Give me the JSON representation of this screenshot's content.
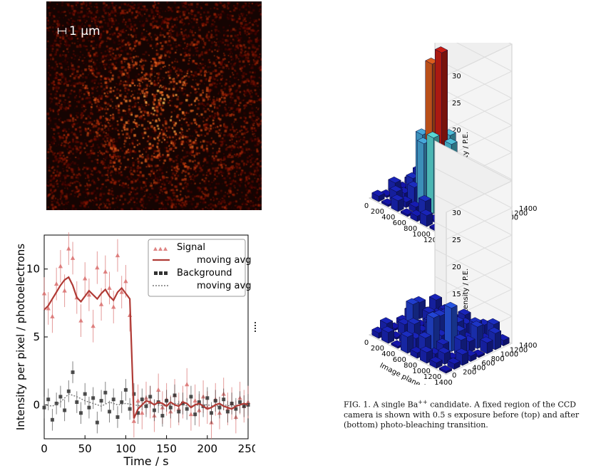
{
  "figure": {
    "scalebar_label": "1 μm",
    "caption": {
      "prefix": "FIG. 1.",
      "text_a": "A single Ba",
      "superscript": "++",
      "text_b": "candidate. A fixed region of the CCD camera is shown with 0.5 s exposure before (top) and after (bottom) photo-bleaching transition."
    }
  },
  "chart_data": [
    {
      "type": "scatter",
      "xlabel": "Time / s",
      "ylabel": "Intensity per pixel / photoelectrons",
      "xlim": [
        0,
        250
      ],
      "ylim": [
        -2.5,
        12.5
      ],
      "xticks": [
        0,
        50,
        100,
        150,
        200,
        250
      ],
      "yticks": [
        0,
        5,
        10
      ],
      "legend": {
        "placement": "top-right",
        "entries": [
          "Signal",
          "moving avg",
          "Background",
          "moving avg"
        ]
      },
      "colors": {
        "signal": "#d9706e",
        "signal_avg": "#b03a35",
        "background": "#333333",
        "background_avg": "#777777"
      },
      "series": [
        {
          "name": "Signal",
          "x": [
            0,
            5,
            10,
            15,
            20,
            25,
            30,
            35,
            40,
            45,
            50,
            55,
            60,
            65,
            70,
            75,
            80,
            85,
            90,
            95,
            100,
            105,
            110,
            115,
            120,
            125,
            130,
            135,
            140,
            145,
            150,
            155,
            160,
            165,
            170,
            175,
            180,
            185,
            190,
            195,
            200,
            205,
            210,
            215,
            220,
            225,
            230,
            235,
            240,
            245,
            250
          ],
          "y": [
            8.2,
            7.1,
            6.5,
            8.9,
            10.2,
            8.4,
            11.5,
            10.8,
            7.9,
            6.2,
            9.3,
            8.1,
            5.8,
            10.1,
            7.4,
            9.8,
            8.6,
            7.2,
            11.0,
            8.3,
            9.1,
            6.6,
            -1.2,
            0.3,
            -0.6,
            0.5,
            0.2,
            -0.8,
            1.1,
            -0.2,
            0.4,
            -0.5,
            0.7,
            -0.3,
            0.2,
            1.5,
            -0.7,
            0.3,
            -0.4,
            0.6,
            -0.2,
            -1.3,
            0.4,
            -0.6,
            0.8,
            -0.3,
            0.1,
            -0.9,
            0.5,
            -0.1,
            0.2
          ]
        },
        {
          "name": "moving avg",
          "x": [
            0,
            5,
            10,
            15,
            20,
            25,
            30,
            35,
            40,
            45,
            50,
            55,
            60,
            65,
            70,
            75,
            80,
            85,
            90,
            95,
            100,
            105,
            108,
            110,
            115,
            120,
            125,
            130,
            135,
            140,
            145,
            150,
            155,
            160,
            165,
            170,
            175,
            180,
            185,
            190,
            195,
            200,
            205,
            210,
            215,
            220,
            225,
            230,
            235,
            240,
            245,
            250
          ],
          "y": [
            7.0,
            7.3,
            7.8,
            8.3,
            8.8,
            9.2,
            9.4,
            8.8,
            7.9,
            7.6,
            8.0,
            8.4,
            8.1,
            7.8,
            8.2,
            8.5,
            8.0,
            7.7,
            8.3,
            8.6,
            8.2,
            7.8,
            2.5,
            -1.0,
            -0.3,
            0.0,
            0.3,
            0.2,
            0.0,
            0.2,
            0.1,
            -0.1,
            0.2,
            0.0,
            -0.1,
            0.2,
            0.1,
            -0.2,
            0.0,
            0.1,
            -0.1,
            -0.3,
            -0.2,
            0.0,
            0.1,
            -0.1,
            -0.2,
            -0.3,
            -0.1,
            0.0,
            0.1,
            0.0
          ]
        },
        {
          "name": "Background",
          "x": [
            0,
            5,
            10,
            15,
            20,
            25,
            30,
            35,
            40,
            45,
            50,
            55,
            60,
            65,
            70,
            75,
            80,
            85,
            90,
            95,
            100,
            105,
            110,
            115,
            120,
            125,
            130,
            135,
            140,
            145,
            150,
            155,
            160,
            165,
            170,
            175,
            180,
            185,
            190,
            195,
            200,
            205,
            210,
            215,
            220,
            225,
            230,
            235,
            240,
            245,
            250
          ],
          "y": [
            -0.2,
            0.4,
            -1.1,
            0.1,
            0.6,
            -0.4,
            1.0,
            2.4,
            0.2,
            -0.6,
            0.8,
            -0.2,
            0.5,
            -1.3,
            0.3,
            0.9,
            -0.5,
            0.4,
            -0.9,
            0.2,
            1.1,
            -0.3,
            0.8,
            -0.6,
            0.4,
            -0.1,
            0.6,
            -0.4,
            0.2,
            -0.8,
            0.3,
            -0.2,
            0.7,
            -0.5,
            0.1,
            -0.3,
            0.6,
            -0.7,
            0.2,
            -0.1,
            0.5,
            -0.6,
            0.3,
            -0.2,
            0.4,
            -0.5,
            0.1,
            -0.3,
            0.2,
            -0.1,
            0.0
          ]
        },
        {
          "name": "moving avg",
          "x": [
            0,
            10,
            20,
            30,
            40,
            50,
            60,
            70,
            80,
            90,
            100,
            110,
            120,
            130,
            140,
            150,
            160,
            170,
            180,
            190,
            200,
            210,
            220,
            230,
            240,
            250
          ],
          "y": [
            0.0,
            -0.1,
            0.2,
            0.8,
            0.6,
            0.3,
            0.1,
            -0.1,
            0.2,
            0.0,
            0.1,
            0.0,
            -0.1,
            0.1,
            0.0,
            -0.1,
            0.1,
            0.0,
            -0.1,
            0.0,
            0.0,
            -0.1,
            0.0,
            -0.1,
            0.0,
            0.0
          ]
        }
      ]
    },
    {
      "type": "bar",
      "subtype": "3d-histogram",
      "panels": [
        "before photo-bleaching",
        "after photo-bleaching"
      ],
      "zlabel": "Intensity / P.E.",
      "xlabel": "Image plane / nm",
      "xticks": [
        0,
        200,
        400,
        600,
        800,
        1000,
        1200,
        1400
      ],
      "yticks": [
        200,
        400,
        600,
        800,
        1000,
        1200,
        1400
      ],
      "zticks": [
        0,
        5,
        10,
        15,
        20,
        25,
        30
      ],
      "zlim": [
        0,
        30
      ],
      "top_grid": [
        [
          1,
          0,
          2,
          0,
          1,
          2,
          0,
          1
        ],
        [
          0,
          2,
          1,
          1,
          3,
          0,
          2,
          1
        ],
        [
          2,
          1,
          3,
          12,
          14,
          11,
          2,
          0
        ],
        [
          0,
          3,
          12,
          26,
          29,
          13,
          3,
          1
        ],
        [
          1,
          2,
          11,
          14,
          13,
          9,
          1,
          2
        ],
        [
          2,
          0,
          3,
          2,
          1,
          2,
          0,
          1
        ],
        [
          0,
          3,
          1,
          2,
          4,
          1,
          2,
          0
        ],
        [
          1,
          0,
          2,
          1,
          0,
          3,
          1,
          2
        ]
      ],
      "bottom_grid": [
        [
          1,
          2,
          0,
          3,
          1,
          2,
          1,
          0
        ],
        [
          2,
          0,
          1,
          2,
          3,
          1,
          2,
          1
        ],
        [
          0,
          2,
          3,
          1,
          6,
          2,
          0,
          2
        ],
        [
          1,
          5,
          1,
          3,
          2,
          8,
          3,
          1
        ],
        [
          2,
          0,
          2,
          4,
          1,
          3,
          2,
          0
        ],
        [
          3,
          2,
          1,
          2,
          3,
          1,
          4,
          2
        ],
        [
          0,
          1,
          2,
          1,
          2,
          3,
          1,
          3
        ],
        [
          2,
          1,
          0,
          2,
          1,
          2,
          3,
          1
        ]
      ]
    }
  ]
}
